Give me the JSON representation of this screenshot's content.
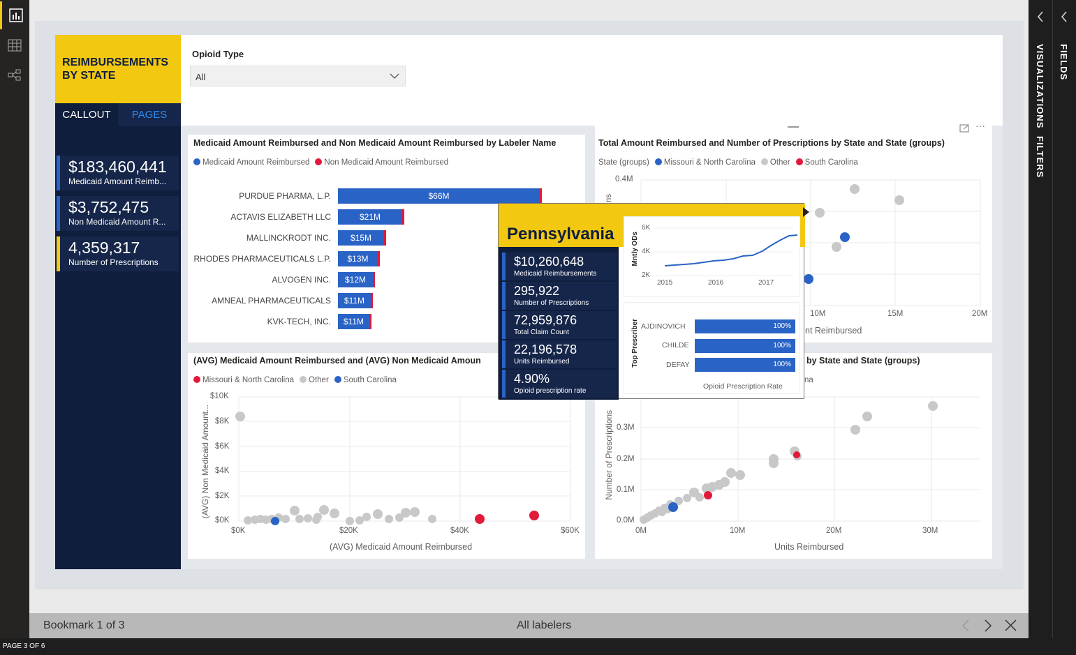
{
  "app": {
    "page_indicator": "PAGE 3 OF 6"
  },
  "left_nav": {
    "items": [
      "report-view-icon",
      "data-view-icon",
      "model-view-icon"
    ]
  },
  "right_panel": {
    "visualizations": "VISUALIZATIONS",
    "filters": "FILTERS",
    "fields": "FIELDS"
  },
  "report": {
    "title": "REIMBURSEMENTS BY STATE",
    "tabs": {
      "callout": "CALLOUT",
      "pages": "PAGES"
    },
    "slicer": {
      "label": "Opioid Type",
      "value": "All"
    },
    "cards": [
      {
        "value": "$183,460,441",
        "label": "Medicaid Amount Reimb..."
      },
      {
        "value": "$3,752,475",
        "label": "Non Medicaid Amount R..."
      },
      {
        "value": "4,359,317",
        "label": "Number of Prescriptions"
      }
    ]
  },
  "bar_chart": {
    "title": "Medicaid Amount Reimbursed and Non Medicaid Amount Reimbursed by Labeler Name",
    "legend": [
      "Medicaid Amount Reimbursed",
      "Non Medicaid Amount Reimbursed"
    ],
    "bars": [
      {
        "name": "PURDUE PHARMA, L.P.",
        "label": "$66M"
      },
      {
        "name": "ACTAVIS ELIZABETH LLC",
        "label": "$21M"
      },
      {
        "name": "MALLINCKRODT INC.",
        "label": "$15M"
      },
      {
        "name": "RHODES PHARMACEUTICALS L.P.",
        "label": "$13M"
      },
      {
        "name": "ALVOGEN INC.",
        "label": "$12M"
      },
      {
        "name": "AMNEAL PHARMACEUTICALS",
        "label": "$11M"
      },
      {
        "name": "KVK-TECH, INC.",
        "label": "$11M"
      }
    ]
  },
  "scatter_top_right": {
    "title": "Total Amount Reimbursed and Number of Prescriptions by State and State (groups)",
    "legend_title": "State (groups)",
    "legend": [
      "Missouri & North Carolina",
      "Other",
      "South Carolina"
    ],
    "y_ticks": [
      "0.4M"
    ],
    "y_partial": "ns",
    "x_ticks": [
      "10M",
      "15M",
      "20M"
    ],
    "x_label_partial": "nt Reimbursed"
  },
  "scatter_bottom_left": {
    "title": "(AVG) Medicaid Amount Reimbursed and (AVG) Non Medicaid Amoun",
    "legend": [
      "Missouri & North Carolina",
      "Other",
      "South Carolina"
    ],
    "y_ticks": [
      "$10K",
      "$8K",
      "$6K",
      "$4K",
      "$2K",
      "$0K"
    ],
    "x_ticks": [
      "$0K",
      "$20K",
      "$40K",
      "$60K"
    ],
    "y_label": "(AVG) Non Medicaid Amount...",
    "x_label": "(AVG) Medicaid Amount Reimbursed"
  },
  "scatter_bottom_right": {
    "title": "by State and State (groups)",
    "legend_partial": "na",
    "y_ticks": [
      "0.3M",
      "0.2M",
      "0.1M",
      "0.0M"
    ],
    "x_ticks": [
      "0M",
      "10M",
      "20M",
      "30M"
    ],
    "y_label": "Number of Prescriptions",
    "x_label": "Units Reimbursed"
  },
  "tooltip": {
    "state": "Pennsylvania",
    "metrics": [
      {
        "value": "$10,260,648",
        "label": "Medicaid Reimbursements"
      },
      {
        "value": "295,922",
        "label": "Number of Prescriptions"
      },
      {
        "value": "72,959,876",
        "label": "Total Claim Count"
      },
      {
        "value": "22,196,578",
        "label": "Units Reimbursed"
      },
      {
        "value": "4.90%",
        "label": "Opioid prescription rate"
      }
    ],
    "line_chart": {
      "y_label": "Mntly ODs",
      "y_ticks": [
        "6K",
        "4K",
        "2K"
      ],
      "x_ticks": [
        "2015",
        "2016",
        "2017"
      ]
    },
    "prescribers": {
      "y_label": "Top Prescriber",
      "rows": [
        {
          "name": "AJDINOVICH",
          "value": "100%"
        },
        {
          "name": "CHILDE",
          "value": "100%"
        },
        {
          "name": "DEFAY",
          "value": "100%"
        }
      ],
      "x_label": "Opioid Prescription Rate"
    }
  },
  "bookmark_bar": {
    "left": "Bookmark 1 of 3",
    "center": "All labelers"
  },
  "colors": {
    "navy": "#0f1e3d",
    "yellow": "#f2c811",
    "blue": "#2a63c6",
    "red": "#e3193a",
    "grey": "#c8c8c8"
  }
}
